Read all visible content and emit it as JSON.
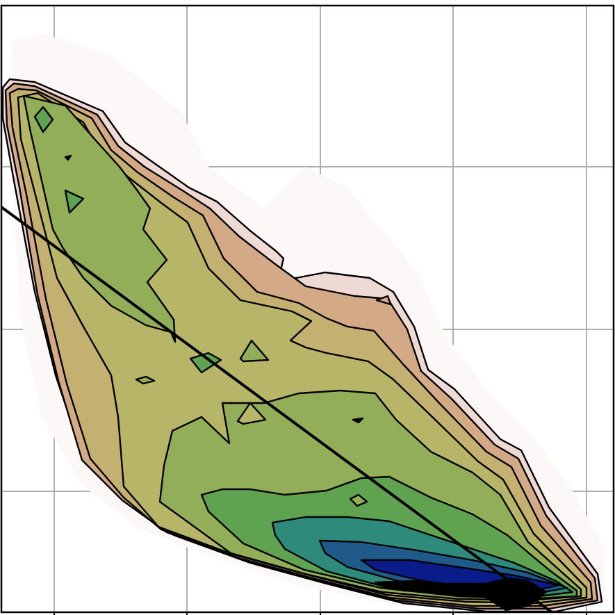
{
  "chart_data": {
    "type": "contour",
    "title": "",
    "xlabel": "",
    "ylabel": "",
    "grid": true,
    "legend": "none",
    "x_tick_labels": [],
    "y_tick_labels": [],
    "colors": {
      "background": "#ffffff",
      "grid": "#b0b0b0",
      "frame": "#000000",
      "contour_line": "#000000",
      "fit_line": "#000000",
      "levels": [
        "#fdf8f8",
        "#efd9d4",
        "#d4aa86",
        "#c4b070",
        "#b6b568",
        "#93ae58",
        "#5fa24f",
        "#2e8a7a",
        "#1f5a8a",
        "#0a1c8a",
        "#000000"
      ]
    },
    "fill_levels": 11,
    "fit_line": {
      "present": true
    }
  }
}
